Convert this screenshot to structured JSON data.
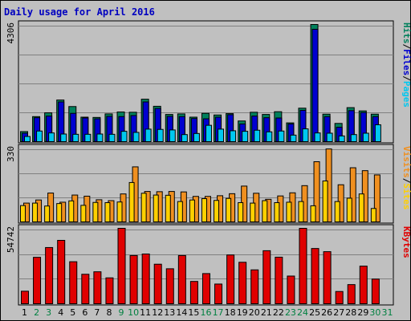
{
  "colors": {
    "background": "#c0c0c0",
    "plot_bg": "#c0c0c0",
    "hits": "#00805c",
    "files": "#0000d0",
    "pages": "#00c8f0",
    "visits": "#f09020",
    "sites": "#ffd000",
    "kbytes": "#e00000",
    "weekend_label": "#008040",
    "weekday_label": "#000000",
    "title": "#0000c0"
  },
  "chart_data": {
    "type": "bar",
    "title": "Daily usage for April 2016",
    "categories": [
      "1",
      "2",
      "3",
      "4",
      "5",
      "6",
      "7",
      "8",
      "9",
      "10",
      "11",
      "12",
      "13",
      "14",
      "15",
      "16",
      "17",
      "18",
      "19",
      "20",
      "21",
      "22",
      "23",
      "24",
      "25",
      "26",
      "27",
      "28",
      "29",
      "30",
      "31"
    ],
    "weekend_days": [
      "2",
      "3",
      "9",
      "10",
      "16",
      "17",
      "23",
      "24",
      "30",
      "31"
    ],
    "panels": [
      {
        "id": "hits",
        "ymax_label": "4306",
        "ylim": [
          0,
          4306
        ],
        "right_labels": [
          {
            "text": "Hits",
            "color": "#00805c"
          },
          {
            "text": "/",
            "color": "#000000"
          },
          {
            "text": "Files",
            "color": "#0000d0"
          },
          {
            "text": "/",
            "color": "#000000"
          },
          {
            "text": "Pages",
            "color": "#00c8f0"
          }
        ],
        "series": [
          {
            "name": "Hits",
            "color": "#00805c",
            "values": [
              370,
              920,
              1060,
              1530,
              1290,
              900,
              890,
              1020,
              1090,
              1080,
              1560,
              1300,
              1000,
              1020,
              900,
              1040,
              980,
              1030,
              760,
              1080,
              1000,
              1100,
              690,
              1230,
              4306,
              1010,
              670,
              1250,
              1130,
              1010,
              0
            ]
          },
          {
            "name": "Files",
            "color": "#0000d0",
            "values": [
              310,
              880,
              940,
              1460,
              1040,
              870,
              840,
              930,
              920,
              960,
              1460,
              1220,
              930,
              920,
              850,
              840,
              900,
              990,
              650,
              940,
              880,
              870,
              650,
              1150,
              4130,
              920,
              530,
              1140,
              1070,
              920,
              0
            ]
          },
          {
            "name": "Pages",
            "color": "#00c8f0",
            "values": [
              190,
              390,
              320,
              280,
              270,
              270,
              280,
              270,
              380,
              340,
              460,
              450,
              430,
              260,
              300,
              600,
              460,
              400,
              380,
              420,
              360,
              390,
              240,
              470,
              320,
              310,
              210,
              260,
              310,
              620,
              0
            ]
          }
        ]
      },
      {
        "id": "visits",
        "ymax_label": "330",
        "ylim": [
          0,
          330
        ],
        "right_labels": [
          {
            "text": "Visits",
            "color": "#f09020"
          },
          {
            "text": "/",
            "color": "#000000"
          },
          {
            "text": "Sites",
            "color": "#ffd000"
          }
        ],
        "series": [
          {
            "name": "Visits",
            "color": "#f09020",
            "values": [
              84,
              98,
              129,
              88,
              120,
              115,
              99,
              95,
              125,
              246,
              136,
              135,
              136,
              134,
              114,
              114,
              117,
              126,
              160,
              128,
              101,
              116,
              130,
              162,
              269,
              326,
              166,
              242,
              229,
              210,
              0
            ]
          },
          {
            "name": "Sites",
            "color": "#ffd000",
            "values": [
              73,
              84,
              71,
              82,
              94,
              74,
              87,
              86,
              89,
              176,
              128,
              120,
              119,
              91,
              98,
              104,
              96,
              105,
              86,
              84,
              95,
              86,
              88,
              91,
              72,
              183,
              91,
              106,
              125,
              60,
              0
            ]
          }
        ]
      },
      {
        "id": "kbytes",
        "ymax_label": "54742",
        "ylim": [
          0,
          54742
        ],
        "right_labels": [
          {
            "text": "KBytes",
            "color": "#e00000"
          }
        ],
        "series": [
          {
            "name": "KBytes",
            "color": "#e00000",
            "values": [
              9100,
              33700,
              40800,
              46000,
              30500,
              21400,
              23200,
              18800,
              54742,
              35000,
              36100,
              28700,
              25400,
              35000,
              16200,
              21900,
              14300,
              35400,
              30100,
              24600,
              38500,
              33800,
              20100,
              54742,
              40100,
              37800,
              8900,
              13900,
              27300,
              17900,
              0
            ]
          }
        ]
      }
    ]
  }
}
